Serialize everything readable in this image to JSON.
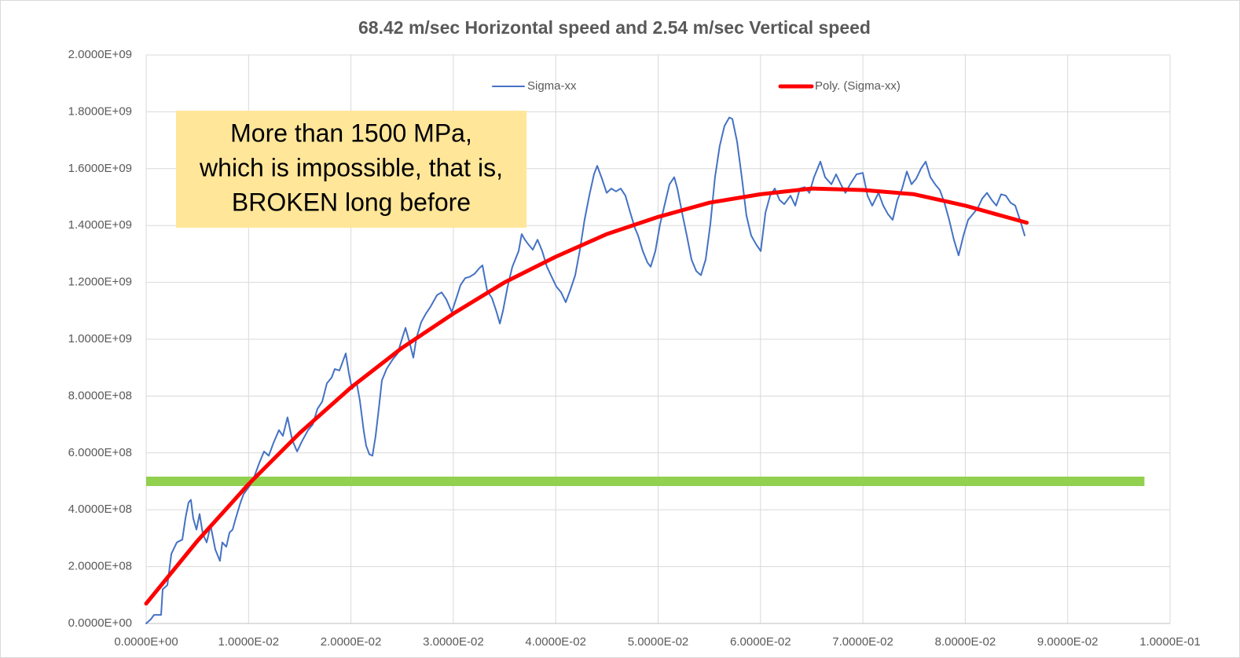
{
  "chart_data": {
    "type": "line",
    "title": "68.42 m/sec Horizontal speed and 2.54 m/sec Vertical speed",
    "xlim": [
      0,
      0.1
    ],
    "ylim": [
      0,
      2000000000
    ],
    "xticks": [
      {
        "value": 0,
        "label": "0.0000E+00"
      },
      {
        "value": 0.01,
        "label": "1.0000E-02"
      },
      {
        "value": 0.02,
        "label": "2.0000E-02"
      },
      {
        "value": 0.03,
        "label": "3.0000E-02"
      },
      {
        "value": 0.04,
        "label": "4.0000E-02"
      },
      {
        "value": 0.05,
        "label": "5.0000E-02"
      },
      {
        "value": 0.06,
        "label": "6.0000E-02"
      },
      {
        "value": 0.07,
        "label": "7.0000E-02"
      },
      {
        "value": 0.08,
        "label": "8.0000E-02"
      },
      {
        "value": 0.09,
        "label": "9.0000E-02"
      },
      {
        "value": 0.1,
        "label": "1.0000E-01"
      }
    ],
    "yticks": [
      {
        "value": 0,
        "label": "0.0000E+00"
      },
      {
        "value": 200000000,
        "label": "2.0000E+08"
      },
      {
        "value": 400000000,
        "label": "4.0000E+08"
      },
      {
        "value": 600000000,
        "label": "6.0000E+08"
      },
      {
        "value": 800000000,
        "label": "8.0000E+08"
      },
      {
        "value": 1000000000,
        "label": "1.0000E+09"
      },
      {
        "value": 1200000000,
        "label": "1.2000E+09"
      },
      {
        "value": 1400000000,
        "label": "1.4000E+09"
      },
      {
        "value": 1600000000,
        "label": "1.6000E+09"
      },
      {
        "value": 1800000000,
        "label": "1.8000E+09"
      },
      {
        "value": 2000000000,
        "label": "2.0000E+09"
      }
    ],
    "grid": true,
    "legend_position": "top",
    "series": [
      {
        "name": "Sigma-xx",
        "color": "#4472c4",
        "width": 2,
        "x": [
          0,
          0.00046,
          0.00077,
          0.00146,
          0.00161,
          0.00207,
          0.00246,
          0.00299,
          0.00353,
          0.00384,
          0.00414,
          0.00437,
          0.0046,
          0.00491,
          0.00522,
          0.00553,
          0.00591,
          0.00629,
          0.00675,
          0.00721,
          0.00744,
          0.00783,
          0.00814,
          0.00844,
          0.00875,
          0.00921,
          0.00952,
          0.01013,
          0.01059,
          0.01105,
          0.01151,
          0.01197,
          0.01243,
          0.01297,
          0.01335,
          0.01381,
          0.01427,
          0.01474,
          0.0152,
          0.01581,
          0.01627,
          0.01673,
          0.01719,
          0.01765,
          0.01811,
          0.01842,
          0.01888,
          0.01949,
          0.0198,
          0.02011,
          0.02057,
          0.02087,
          0.02126,
          0.02149,
          0.0218,
          0.0221,
          0.02241,
          0.02272,
          0.02302,
          0.02348,
          0.0241,
          0.02456,
          0.02502,
          0.02533,
          0.02579,
          0.02609,
          0.0264,
          0.02686,
          0.02732,
          0.02778,
          0.0284,
          0.02886,
          0.02932,
          0.02985,
          0.03039,
          0.0307,
          0.03116,
          0.03162,
          0.03208,
          0.03254,
          0.03285,
          0.03331,
          0.03377,
          0.03423,
          0.03454,
          0.03485,
          0.0353,
          0.03576,
          0.03638,
          0.03668,
          0.03699,
          0.0373,
          0.03776,
          0.03822,
          0.03868,
          0.03914,
          0.0396,
          0.04006,
          0.04052,
          0.04098,
          0.04144,
          0.0419,
          0.04236,
          0.04282,
          0.04328,
          0.04374,
          0.04405,
          0.04451,
          0.04497,
          0.04543,
          0.04589,
          0.04635,
          0.04681,
          0.04728,
          0.04774,
          0.04804,
          0.0485,
          0.04896,
          0.04927,
          0.04973,
          0.05019,
          0.05065,
          0.05111,
          0.05157,
          0.05188,
          0.05234,
          0.0528,
          0.05326,
          0.05372,
          0.05418,
          0.05464,
          0.0551,
          0.05556,
          0.05602,
          0.05648,
          0.05695,
          0.05725,
          0.05771,
          0.05817,
          0.05863,
          0.05909,
          0.05955,
          0.06002,
          0.06048,
          0.06094,
          0.0614,
          0.06186,
          0.06232,
          0.06293,
          0.06339,
          0.06385,
          0.06431,
          0.06477,
          0.06523,
          0.06585,
          0.06631,
          0.06692,
          0.06738,
          0.06784,
          0.0683,
          0.06876,
          0.06938,
          0.06999,
          0.07045,
          0.07091,
          0.07153,
          0.07199,
          0.07245,
          0.07291,
          0.07337,
          0.07383,
          0.07429,
          0.07475,
          0.07521,
          0.07567,
          0.07613,
          0.07659,
          0.07705,
          0.07751,
          0.07797,
          0.07843,
          0.07889,
          0.07935,
          0.07982,
          0.08028,
          0.08074,
          0.0812,
          0.08166,
          0.08212,
          0.08258,
          0.08304,
          0.0835,
          0.08396,
          0.08442,
          0.08488,
          0.08534,
          0.0858
        ],
        "values": [
          0,
          15000000,
          30000000,
          30000000,
          120000000,
          135000000,
          245000000,
          285000000,
          295000000,
          370000000,
          425000000,
          435000000,
          370000000,
          330000000,
          385000000,
          315000000,
          285000000,
          345000000,
          260000000,
          220000000,
          285000000,
          270000000,
          320000000,
          330000000,
          370000000,
          425000000,
          455000000,
          485000000,
          520000000,
          565000000,
          605000000,
          590000000,
          635000000,
          680000000,
          660000000,
          725000000,
          645000000,
          605000000,
          640000000,
          680000000,
          700000000,
          755000000,
          780000000,
          845000000,
          865000000,
          895000000,
          890000000,
          950000000,
          880000000,
          825000000,
          845000000,
          785000000,
          675000000,
          625000000,
          595000000,
          590000000,
          660000000,
          755000000,
          855000000,
          895000000,
          930000000,
          950000000,
          1005000000,
          1040000000,
          980000000,
          935000000,
          1005000000,
          1060000000,
          1090000000,
          1115000000,
          1155000000,
          1165000000,
          1140000000,
          1095000000,
          1155000000,
          1190000000,
          1215000000,
          1220000000,
          1230000000,
          1250000000,
          1260000000,
          1170000000,
          1145000000,
          1095000000,
          1055000000,
          1100000000,
          1185000000,
          1255000000,
          1310000000,
          1370000000,
          1350000000,
          1335000000,
          1315000000,
          1350000000,
          1310000000,
          1255000000,
          1220000000,
          1185000000,
          1165000000,
          1130000000,
          1175000000,
          1225000000,
          1315000000,
          1420000000,
          1505000000,
          1580000000,
          1610000000,
          1565000000,
          1515000000,
          1530000000,
          1520000000,
          1530000000,
          1505000000,
          1445000000,
          1390000000,
          1365000000,
          1310000000,
          1270000000,
          1255000000,
          1310000000,
          1405000000,
          1475000000,
          1545000000,
          1570000000,
          1530000000,
          1445000000,
          1365000000,
          1280000000,
          1240000000,
          1225000000,
          1280000000,
          1405000000,
          1570000000,
          1680000000,
          1750000000,
          1780000000,
          1775000000,
          1695000000,
          1570000000,
          1435000000,
          1365000000,
          1335000000,
          1310000000,
          1445000000,
          1505000000,
          1530000000,
          1490000000,
          1475000000,
          1505000000,
          1470000000,
          1530000000,
          1535000000,
          1515000000,
          1570000000,
          1625000000,
          1570000000,
          1545000000,
          1580000000,
          1545000000,
          1515000000,
          1545000000,
          1580000000,
          1585000000,
          1505000000,
          1470000000,
          1515000000,
          1470000000,
          1440000000,
          1420000000,
          1490000000,
          1530000000,
          1590000000,
          1545000000,
          1565000000,
          1600000000,
          1625000000,
          1570000000,
          1545000000,
          1525000000,
          1480000000,
          1420000000,
          1350000000,
          1295000000,
          1365000000,
          1420000000,
          1440000000,
          1460000000,
          1495000000,
          1515000000,
          1490000000,
          1470000000,
          1510000000,
          1505000000,
          1480000000,
          1470000000,
          1420000000,
          1365000000
        ]
      },
      {
        "name": "Poly. (Sigma-xx)",
        "color": "#ff0000",
        "width": 5,
        "x": [
          0,
          0.005,
          0.01,
          0.015,
          0.02,
          0.025,
          0.03,
          0.035,
          0.04,
          0.045,
          0.05,
          0.055,
          0.06,
          0.065,
          0.07,
          0.075,
          0.08,
          0.086
        ],
        "values": [
          70000000,
          290000000,
          490000000,
          670000000,
          830000000,
          970000000,
          1090000000,
          1200000000,
          1290000000,
          1370000000,
          1430000000,
          1480000000,
          1510000000,
          1530000000,
          1525000000,
          1510000000,
          1470000000,
          1410000000
        ]
      },
      {
        "color": "#92d050",
        "width": 12,
        "x": [
          0,
          0.0975
        ],
        "values": [
          500000000,
          500000000
        ]
      }
    ],
    "annotation": {
      "lines": [
        "More than 1500 MPa,",
        "which is impossible, that is,",
        "BROKEN long before"
      ],
      "background": "#ffe699"
    }
  }
}
